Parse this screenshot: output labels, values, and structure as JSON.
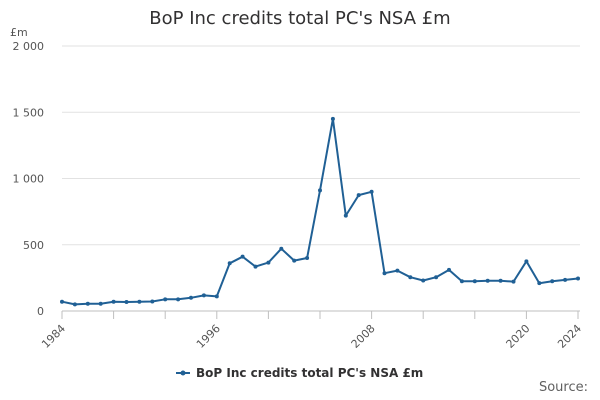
{
  "chart_data": {
    "type": "line",
    "title": "BoP Inc credits total PC's NSA £m",
    "ylabel": "£m",
    "xlabel": "",
    "ylim": [
      0,
      2000
    ],
    "yticks": [
      0,
      500,
      1000,
      1500,
      2000
    ],
    "ytick_labels": [
      "0",
      "500",
      "1 000",
      "1 500",
      "2 000"
    ],
    "xticks": [
      1984,
      1996,
      2008,
      2020,
      2024
    ],
    "xtick_labels": [
      "1984",
      "1996",
      "2008",
      "2020",
      "2024"
    ],
    "xlim": [
      1984,
      2024
    ],
    "grid": true,
    "legend": "bottom-center",
    "series": [
      {
        "name": "BoP Inc credits total PC's NSA £m",
        "color": "#206095",
        "x": [
          1984,
          1985,
          1986,
          1987,
          1988,
          1989,
          1990,
          1991,
          1992,
          1993,
          1994,
          1995,
          1996,
          1997,
          1998,
          1999,
          2000,
          2001,
          2002,
          2003,
          2004,
          2005,
          2006,
          2007,
          2008,
          2009,
          2010,
          2011,
          2012,
          2013,
          2014,
          2015,
          2016,
          2017,
          2018,
          2019,
          2020,
          2021,
          2022,
          2023,
          2024
        ],
        "values": [
          70,
          50,
          55,
          55,
          70,
          68,
          70,
          72,
          88,
          88,
          100,
          118,
          110,
          360,
          410,
          335,
          365,
          470,
          380,
          400,
          910,
          1450,
          720,
          875,
          900,
          285,
          305,
          255,
          230,
          255,
          310,
          225,
          225,
          228,
          228,
          222,
          375,
          210,
          225,
          235,
          245
        ]
      }
    ]
  },
  "source_label": "Source:"
}
